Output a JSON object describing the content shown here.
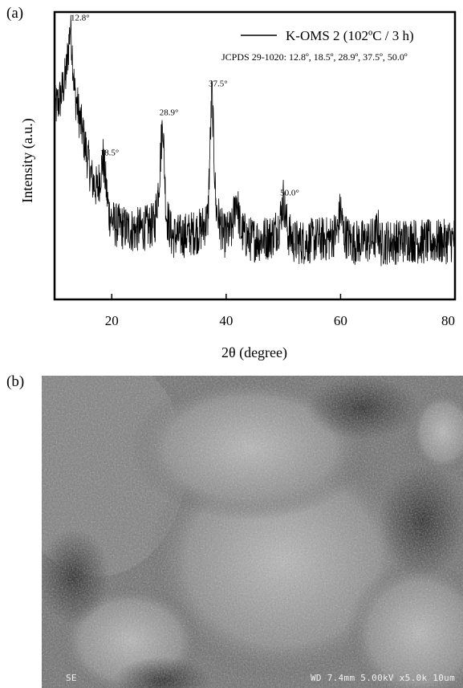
{
  "panel_a_label": "(a)",
  "panel_b_label": "(b)",
  "chart_data": {
    "type": "line",
    "xlabel": "2θ (degree)",
    "ylabel": "Intensity (a.u.)",
    "xlim": [
      10,
      80
    ],
    "ylim": [
      0,
      1
    ],
    "xticks": [
      20,
      40,
      60,
      80
    ],
    "ytick_labels": "none",
    "grid": false,
    "legend": {
      "label": "K-OMS 2 (102ºC / 3 h)",
      "position": "top-right"
    },
    "annotation_text": "JCPDS 29-1020: 12.8º, 18.5º, 28.9º, 37.5º, 50.0º",
    "peaks": [
      {
        "x": 12.8,
        "label": "12.8°",
        "y": 0.96
      },
      {
        "x": 18.5,
        "label": "18.5°",
        "y": 0.49
      },
      {
        "x": 28.9,
        "label": "28.9°",
        "y": 0.63
      },
      {
        "x": 37.5,
        "label": "37.5°",
        "y": 0.73
      },
      {
        "x": 50.0,
        "label": "50.0°",
        "y": 0.35
      }
    ],
    "series": [
      {
        "color": "#000000",
        "x": [
          10,
          11,
          12,
          12.8,
          13.5,
          14.5,
          15.5,
          16.5,
          17.5,
          18.5,
          19.5,
          20.5,
          22,
          24,
          26,
          27.5,
          28.3,
          28.9,
          29.5,
          30.5,
          32,
          34,
          35.5,
          36.8,
          37.5,
          38.2,
          39.5,
          41,
          41.8,
          42.5,
          44,
          46,
          48,
          49.3,
          50,
          50.8,
          52,
          54,
          56,
          58,
          59.5,
          60,
          60.5,
          62,
          64,
          66,
          66.5,
          67,
          68,
          70,
          72,
          74,
          76,
          78,
          80
        ],
        "y": [
          0.66,
          0.7,
          0.78,
          0.96,
          0.72,
          0.62,
          0.52,
          0.42,
          0.38,
          0.49,
          0.3,
          0.26,
          0.25,
          0.24,
          0.25,
          0.26,
          0.42,
          0.63,
          0.3,
          0.22,
          0.22,
          0.23,
          0.24,
          0.28,
          0.73,
          0.32,
          0.22,
          0.24,
          0.36,
          0.24,
          0.21,
          0.21,
          0.22,
          0.26,
          0.35,
          0.23,
          0.2,
          0.2,
          0.21,
          0.21,
          0.24,
          0.32,
          0.23,
          0.2,
          0.2,
          0.21,
          0.25,
          0.19,
          0.2,
          0.2,
          0.21,
          0.2,
          0.2,
          0.2,
          0.21
        ]
      }
    ]
  },
  "sem": {
    "mode_label": "SE",
    "info_label": "WD 7.4mm 5.00kV x5.0k  10um"
  }
}
